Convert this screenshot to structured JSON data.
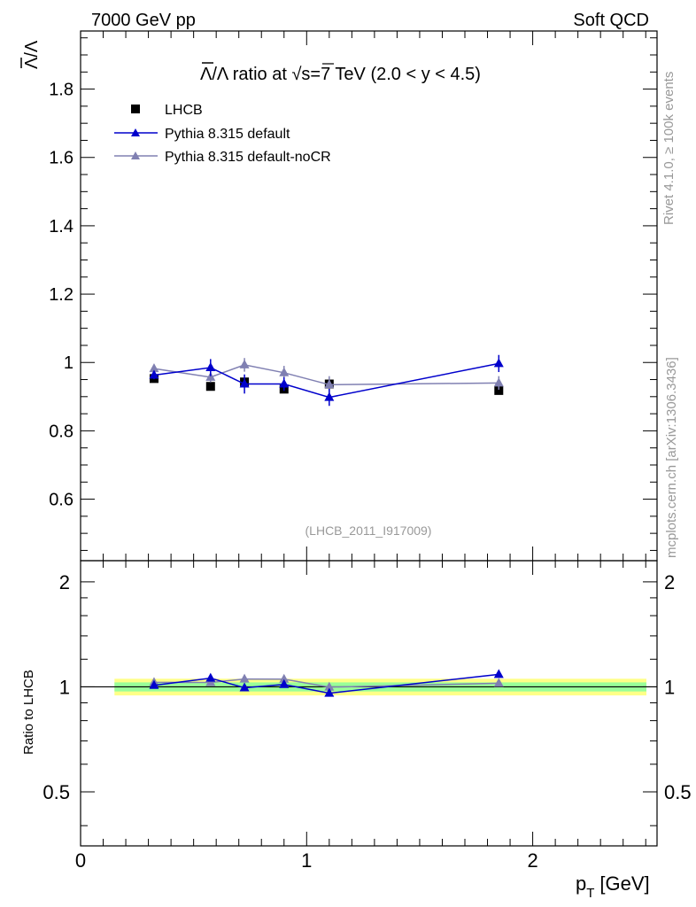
{
  "header": {
    "left": "7000 GeV pp",
    "right": "Soft QCD"
  },
  "side_labels": {
    "rivet": "Rivet 4.1.0, ≥ 100k events",
    "mcplots": "mcplots.cern.ch [arXiv:1306.3436]"
  },
  "chart_data": [
    {
      "type": "scatter",
      "panel": "main",
      "title_parts": {
        "lambda_bar": "Λ",
        "slash_lambda": "/Λ",
        "ratio_at": " ratio at ",
        "sqrt": "√",
        "s_rest": "s=7 TeV (2.0 < y < 4.5)"
      },
      "ylabel_parts": {
        "lambda_bar": "Λ",
        "slash_lambda": "/Λ"
      },
      "xlabel_parts": {
        "p": "p",
        "T": "T",
        "unit": "[GeV]"
      },
      "analysis_tag": "(LHCB_2011_I917009)",
      "xlim": [
        0,
        2.55
      ],
      "ylim": [
        0.42,
        1.97
      ],
      "yticks": [
        0.6,
        0.8,
        1,
        1.2,
        1.4,
        1.6,
        1.8
      ],
      "ytick_labels": [
        "0.6",
        "0.8",
        "1",
        "1.2",
        "1.4",
        "1.6",
        "1.8"
      ],
      "series": [
        {
          "name": "LHCB",
          "marker": "square",
          "color": "#000000",
          "x": [
            0.325,
            0.575,
            0.725,
            0.9,
            1.1,
            1.85
          ],
          "y": [
            0.953,
            0.93,
            0.943,
            0.922,
            0.937,
            0.918
          ],
          "yerr": [
            0.01,
            0.01,
            0.012,
            0.01,
            0.015,
            0.012
          ]
        },
        {
          "name": "Pythia 8.315 default",
          "marker": "triangle",
          "color": "#0000cc",
          "x": [
            0.325,
            0.575,
            0.725,
            0.9,
            1.1,
            1.85
          ],
          "y": [
            0.963,
            0.985,
            0.937,
            0.937,
            0.898,
            0.997
          ],
          "yerr": [
            0.012,
            0.025,
            0.028,
            0.02,
            0.025,
            0.025
          ]
        },
        {
          "name": "Pythia 8.315 default-noCR",
          "marker": "triangle",
          "color": "#8080b2",
          "x": [
            0.325,
            0.575,
            0.725,
            0.9,
            1.1,
            1.85
          ],
          "y": [
            0.982,
            0.957,
            0.993,
            0.97,
            0.935,
            0.94
          ],
          "yerr": [
            0.012,
            0.015,
            0.02,
            0.02,
            0.025,
            0.02
          ]
        }
      ]
    },
    {
      "type": "scatter",
      "panel": "ratio",
      "ylabel": "Ratio to LHCB",
      "xlim": [
        0,
        2.55
      ],
      "ylim": [
        0.35,
        2.3
      ],
      "xticks": [
        0,
        1,
        2
      ],
      "xtick_labels": [
        "0",
        "1",
        "2"
      ],
      "yticks": [
        0.5,
        1,
        2
      ],
      "ytick_labels": [
        "0.5",
        "1",
        "2"
      ],
      "bands": {
        "x_range": [
          0.15,
          2.55
        ],
        "outer": [
          0.945,
          1.055
        ],
        "inner": [
          0.97,
          1.03
        ],
        "outer_color": "#ffff88",
        "inner_color": "#99ff99"
      },
      "series": [
        {
          "name": "Pythia 8.315 default",
          "color": "#0000cc",
          "x": [
            0.325,
            0.575,
            0.725,
            0.9,
            1.1,
            1.85
          ],
          "y": [
            1.01,
            1.059,
            0.994,
            1.016,
            0.959,
            1.086
          ],
          "yerr": [
            0.01,
            0.022,
            0.02,
            0.015,
            0.015,
            0.01
          ]
        },
        {
          "name": "Pythia 8.315 default-noCR",
          "color": "#8080b2",
          "x": [
            0.325,
            0.575,
            0.725,
            0.9,
            1.1,
            1.85
          ],
          "y": [
            1.03,
            1.029,
            1.053,
            1.052,
            0.998,
            1.024
          ],
          "yerr": [
            0.01,
            0.015,
            0.018,
            0.015,
            0.018,
            0.01
          ]
        }
      ]
    }
  ]
}
